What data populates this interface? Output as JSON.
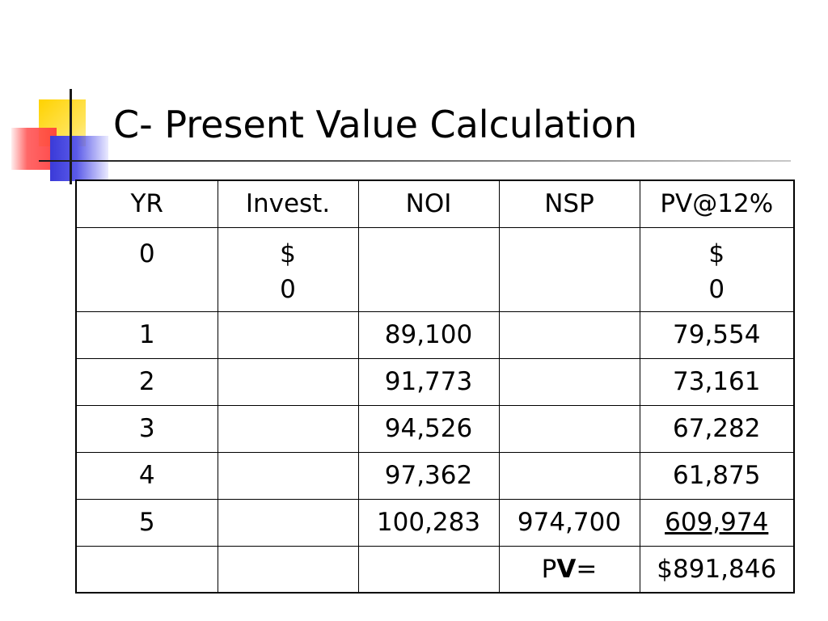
{
  "slide": {
    "title": "C- Present Value Calculation"
  },
  "table": {
    "headers": [
      "YR",
      "Invest.",
      "NOI",
      "NSP",
      "PV@12%"
    ],
    "row0": {
      "yr": "0",
      "invest_sym": "$",
      "invest_val": "0",
      "pv_sym": "$",
      "pv_val": "0"
    },
    "rows": [
      {
        "yr": "1",
        "invest": "",
        "noi": "89,100",
        "nsp": "",
        "pv": "79,554"
      },
      {
        "yr": "2",
        "invest": "",
        "noi": "91,773",
        "nsp": "",
        "pv": "73,161"
      },
      {
        "yr": "3",
        "invest": "",
        "noi": "94,526",
        "nsp": "",
        "pv": "67,282"
      },
      {
        "yr": "4",
        "invest": "",
        "noi": "97,362",
        "nsp": "",
        "pv": "61,875"
      },
      {
        "yr": "5",
        "invest": "",
        "noi": "100,283",
        "nsp": "974,700",
        "pv": "609,974"
      }
    ],
    "total": {
      "label_p": "P",
      "label_v": "V",
      "label_eq": "=",
      "value": "$891,846"
    }
  }
}
